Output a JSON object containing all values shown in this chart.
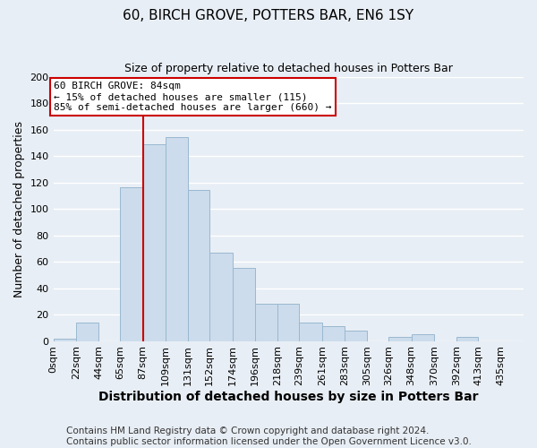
{
  "title": "60, BIRCH GROVE, POTTERS BAR, EN6 1SY",
  "subtitle": "Size of property relative to detached houses in Potters Bar",
  "xlabel": "Distribution of detached houses by size in Potters Bar",
  "ylabel": "Number of detached properties",
  "footer_line1": "Contains HM Land Registry data © Crown copyright and database right 2024.",
  "footer_line2": "Contains public sector information licensed under the Open Government Licence v3.0.",
  "bin_labels": [
    "0sqm",
    "22sqm",
    "44sqm",
    "65sqm",
    "87sqm",
    "109sqm",
    "131sqm",
    "152sqm",
    "174sqm",
    "196sqm",
    "218sqm",
    "239sqm",
    "261sqm",
    "283sqm",
    "305sqm",
    "326sqm",
    "348sqm",
    "370sqm",
    "392sqm",
    "413sqm",
    "435sqm"
  ],
  "bin_edges": [
    0,
    22,
    44,
    65,
    87,
    109,
    131,
    152,
    174,
    196,
    218,
    239,
    261,
    283,
    305,
    326,
    348,
    370,
    392,
    413,
    435
  ],
  "bar_heights": [
    2,
    14,
    0,
    116,
    149,
    154,
    114,
    67,
    55,
    28,
    28,
    14,
    11,
    8,
    0,
    3,
    5,
    0,
    3,
    0,
    0
  ],
  "bar_color": "#ccdcec",
  "bar_edge_color": "#9ab8d0",
  "property_line_x": 87,
  "xlim_max": 457,
  "ylim": [
    0,
    200
  ],
  "yticks": [
    0,
    20,
    40,
    60,
    80,
    100,
    120,
    140,
    160,
    180,
    200
  ],
  "annotation_line1": "60 BIRCH GROVE: 84sqm",
  "annotation_line2": "← 15% of detached houses are smaller (115)",
  "annotation_line3": "85% of semi-detached houses are larger (660) →",
  "annotation_box_color": "#ffffff",
  "annotation_box_edge": "#cc0000",
  "red_line_color": "#cc0000",
  "background_color": "#e8eef5",
  "grid_color": "#ffffff",
  "title_fontsize": 11,
  "subtitle_fontsize": 9,
  "xlabel_fontsize": 10,
  "ylabel_fontsize": 9,
  "tick_fontsize": 8,
  "footer_fontsize": 7.5
}
